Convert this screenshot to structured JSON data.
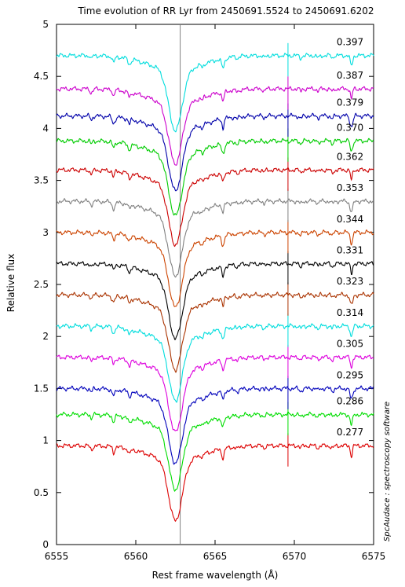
{
  "chart_data": {
    "type": "line",
    "title": "Time evolution of RR Lyr from 2450691.5524 to 2450691.6202",
    "xlabel": "Rest frame wavelength (Å)",
    "ylabel": "Relative flux",
    "credit": "SpcAudace : spectroscopy software",
    "xlim": [
      6555,
      6575
    ],
    "ylim": [
      0,
      5
    ],
    "x_ticks": [
      "6555",
      "6560",
      "6565",
      "6570",
      "6575"
    ],
    "y_ticks": [
      "0",
      "0.5",
      "1",
      "1.5",
      "2",
      "2.5",
      "3",
      "3.5",
      "4",
      "4.5",
      "5"
    ],
    "reference_line_x": 6562.8,
    "grid": false,
    "legend": "none",
    "series": [
      {
        "name": "0.277",
        "baseline": 0.95,
        "color": "#dd0000"
      },
      {
        "name": "0.286",
        "baseline": 1.25,
        "color": "#00dd00"
      },
      {
        "name": "0.295",
        "baseline": 1.5,
        "color": "#0000bb"
      },
      {
        "name": "0.305",
        "baseline": 1.8,
        "color": "#dd00dd"
      },
      {
        "name": "0.314",
        "baseline": 2.1,
        "color": "#00dddd"
      },
      {
        "name": "0.323",
        "baseline": 2.4,
        "color": "#aa3300"
      },
      {
        "name": "0.331",
        "baseline": 2.7,
        "color": "#000000"
      },
      {
        "name": "0.344",
        "baseline": 3.0,
        "color": "#cc4400"
      },
      {
        "name": "0.353",
        "baseline": 3.3,
        "color": "#808080"
      },
      {
        "name": "0.362",
        "baseline": 3.6,
        "color": "#cc0000"
      },
      {
        "name": "0.370",
        "baseline": 3.88,
        "color": "#00cc00"
      },
      {
        "name": "0.379",
        "baseline": 4.12,
        "color": "#0000aa"
      },
      {
        "name": "0.387",
        "baseline": 4.38,
        "color": "#cc00cc"
      },
      {
        "name": "0.397",
        "baseline": 4.7,
        "color": "#00dddd"
      }
    ]
  }
}
